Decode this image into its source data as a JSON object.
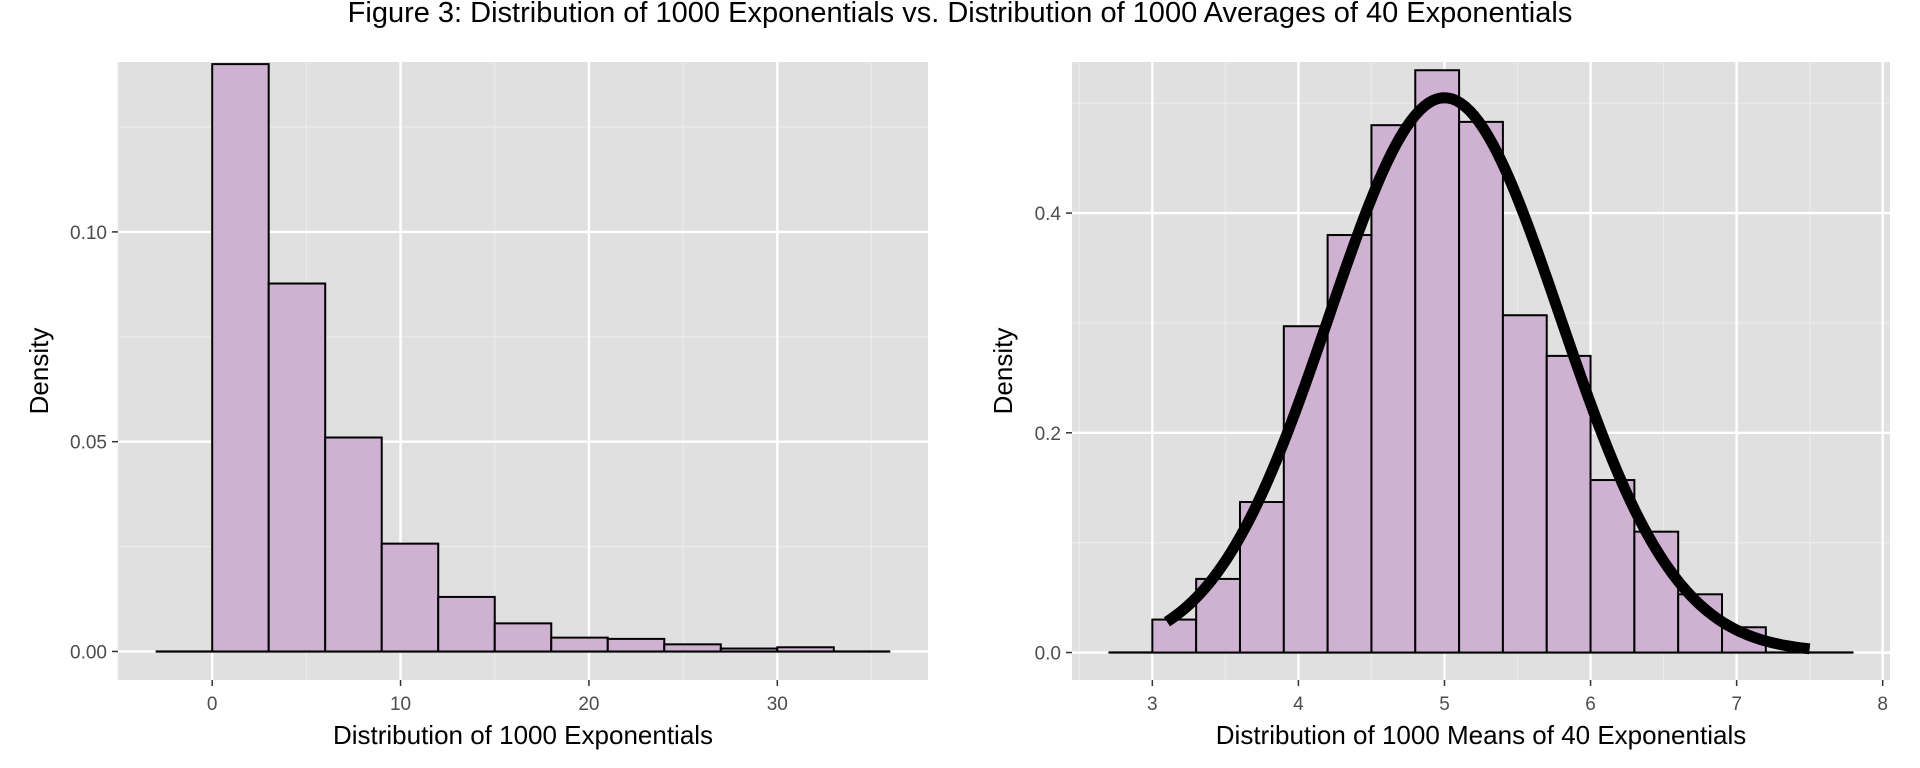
{
  "title": "Figure 3: Distribution of 1000 Exponentials vs. Distribution of 1000 Averages of 40 Exponentials",
  "colors": {
    "panel_bg": "#E0E0E0",
    "grid_major": "#FFFFFF",
    "grid_minor": "#EBEBEB",
    "bar_fill": "#CFB1D2",
    "bar_stroke": "#000000",
    "curve": "#000000",
    "tick_text": "#4D4D4D"
  },
  "chart_data": [
    {
      "type": "bar",
      "xlabel": "Distribution of 1000 Exponentials",
      "ylabel": "Density",
      "xlim": [
        -5,
        38
      ],
      "ylim": [
        -0.0068,
        0.1405
      ],
      "xticks": [
        0,
        10,
        20,
        30
      ],
      "xtick_labels": [
        "0",
        "10",
        "20",
        "30"
      ],
      "yticks": [
        0.0,
        0.05,
        0.1
      ],
      "ytick_labels": [
        "0.00",
        "0.05",
        "0.10"
      ],
      "baseline": [
        -3,
        36
      ],
      "bin_width": 3,
      "bin_starts": [
        0,
        3,
        6,
        9,
        12,
        15,
        18,
        21,
        24,
        27,
        30
      ],
      "values": [
        0.14,
        0.0877,
        0.051,
        0.0257,
        0.013,
        0.0067,
        0.0033,
        0.003,
        0.0017,
        0.0007,
        0.001
      ],
      "grid": true
    },
    {
      "type": "bar",
      "xlabel": "Distribution of 1000 Means of 40 Exponentials",
      "ylabel": "Density",
      "xlim": [
        2.45,
        8.05
      ],
      "ylim": [
        -0.025,
        0.5375
      ],
      "xticks": [
        3,
        4,
        5,
        6,
        7,
        8
      ],
      "xtick_labels": [
        "3",
        "4",
        "5",
        "6",
        "7",
        "8"
      ],
      "yticks": [
        0.0,
        0.2,
        0.4
      ],
      "ytick_labels": [
        "0.0",
        "0.2",
        "0.4"
      ],
      "baseline": [
        2.7,
        7.8
      ],
      "bin_width": 0.3,
      "bin_starts": [
        3.0,
        3.3,
        3.6,
        3.9,
        4.2,
        4.5,
        4.8,
        5.1,
        5.4,
        5.7,
        6.0,
        6.3,
        6.6,
        6.9
      ],
      "values": [
        0.03,
        0.067,
        0.137,
        0.297,
        0.38,
        0.48,
        0.53,
        0.483,
        0.307,
        0.27,
        0.157,
        0.11,
        0.053,
        0.023
      ],
      "curve": {
        "type": "normal-density",
        "mean": 5,
        "sd": 0.79,
        "x_range": [
          3.1,
          7.5
        ]
      },
      "grid": true
    }
  ]
}
